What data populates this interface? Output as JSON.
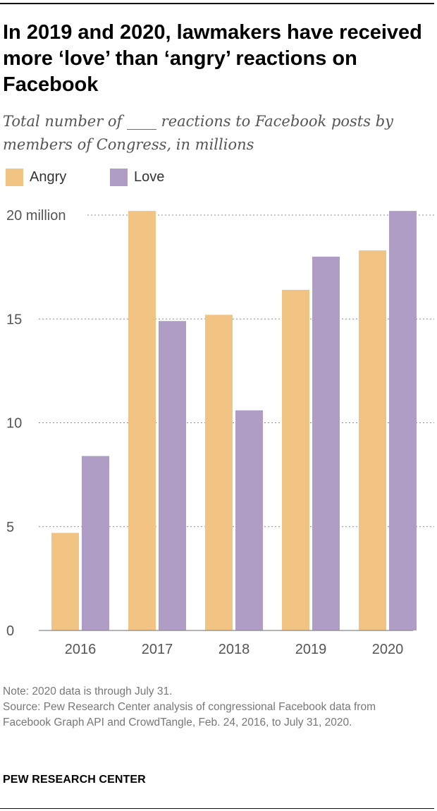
{
  "title": "In 2019 and 2020, lawmakers have received more ‘love’ than ‘angry’ reactions on Facebook",
  "subtitle": "Total number of ____ reactions to Facebook posts by members of Congress, in millions",
  "note": "Note: 2020 data is through July 31.",
  "source": "Source: Pew Research Center analysis of congressional Facebook data from Facebook Graph API and CrowdTangle, Feb. 24, 2016, to July 31, 2020.",
  "organization": "PEW RESEARCH CENTER",
  "chart_data": {
    "type": "bar",
    "categories": [
      "2016",
      "2017",
      "2018",
      "2019",
      "2020"
    ],
    "series": [
      {
        "name": "Angry",
        "color": "#F2C483",
        "values": [
          4.7,
          20.2,
          15.2,
          16.4,
          18.3
        ]
      },
      {
        "name": "Love",
        "color": "#B09DC6",
        "values": [
          8.4,
          14.9,
          10.6,
          18.0,
          20.2
        ]
      }
    ],
    "yticks": [
      0,
      5,
      10,
      15,
      20
    ],
    "ytick_labels": [
      "0",
      "5",
      "10",
      "15",
      "20 million"
    ],
    "ylim": [
      0,
      20
    ],
    "grid": true,
    "legend_position": "top-left"
  }
}
